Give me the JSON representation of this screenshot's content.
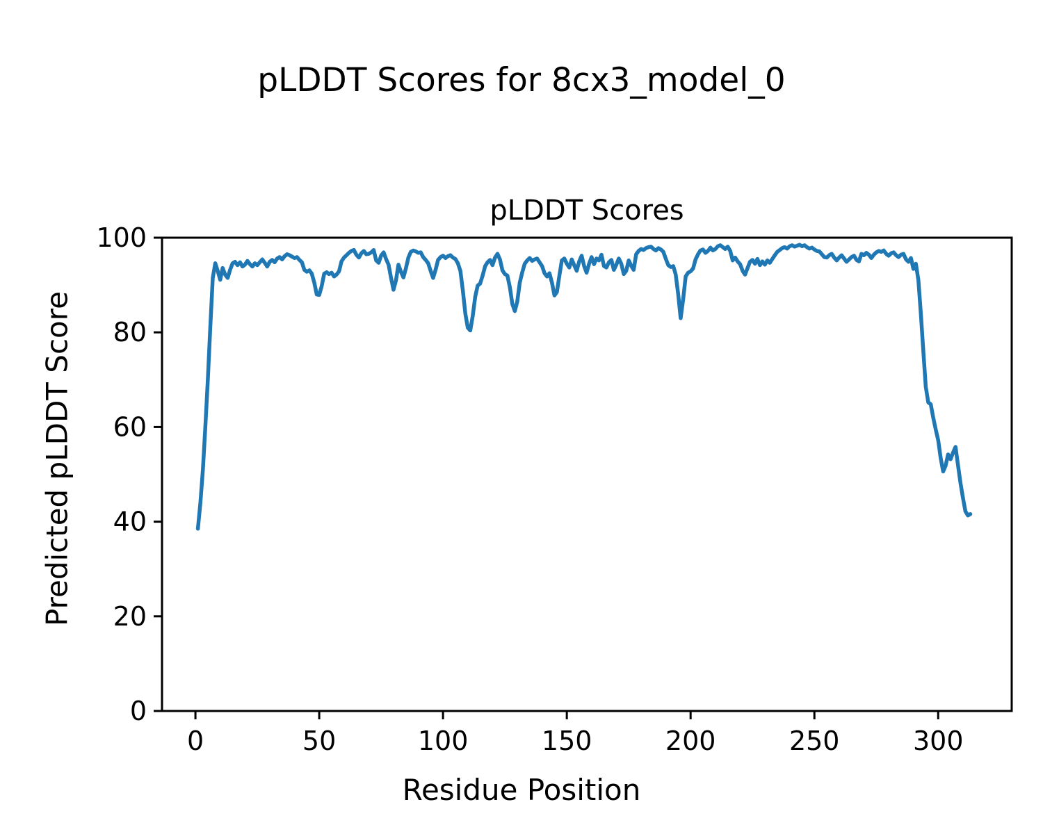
{
  "figure": {
    "suptitle": "pLDDT Scores for 8cx3_model_0",
    "background": "#ffffff"
  },
  "chart_data": {
    "type": "line",
    "title": "pLDDT Scores",
    "suptitle": "pLDDT Scores for 8cx3_model_0",
    "xlabel": "Residue Position",
    "ylabel": "Predicted pLDDT Score",
    "xlim": [
      -13.5,
      329.7
    ],
    "ylim": [
      0,
      100
    ],
    "xticks": [
      0,
      50,
      100,
      150,
      200,
      250,
      300
    ],
    "yticks": [
      0,
      20,
      40,
      60,
      80,
      100
    ],
    "grid": false,
    "legend": false,
    "line_color": "#1f77b4",
    "axes_color": "#000000",
    "series": [
      {
        "name": "pLDDT",
        "x_start": 1,
        "x_step": 1,
        "y": [
          38.5,
          44.0,
          51.0,
          60.0,
          70.0,
          81.0,
          91.5,
          94.6,
          93.0,
          91.1,
          93.6,
          92.2,
          91.5,
          93.2,
          94.6,
          94.9,
          94.2,
          94.8,
          93.9,
          94.3,
          95.1,
          94.4,
          93.9,
          94.6,
          94.2,
          94.8,
          95.4,
          94.7,
          93.9,
          94.9,
          95.3,
          94.8,
          95.6,
          95.9,
          95.4,
          96.1,
          96.5,
          96.3,
          96.0,
          95.7,
          95.9,
          95.3,
          94.8,
          93.2,
          92.8,
          93.1,
          92.4,
          90.5,
          88.0,
          87.9,
          89.8,
          92.4,
          92.7,
          92.3,
          92.6,
          91.8,
          92.2,
          92.9,
          95.0,
          95.8,
          96.3,
          96.8,
          97.2,
          97.4,
          96.4,
          95.8,
          96.7,
          97.2,
          96.5,
          96.6,
          96.9,
          97.4,
          95.2,
          94.7,
          96.2,
          96.9,
          95.5,
          94.3,
          91.5,
          89.0,
          91.0,
          94.3,
          92.8,
          91.6,
          93.5,
          95.8,
          97.0,
          97.3,
          97.1,
          96.8,
          96.9,
          95.9,
          95.3,
          94.6,
          93.0,
          91.5,
          93.2,
          95.3,
          95.9,
          96.2,
          95.7,
          96.1,
          96.3,
          95.8,
          95.5,
          94.6,
          93.0,
          88.9,
          84.0,
          81.0,
          80.4,
          83.5,
          87.5,
          89.9,
          90.3,
          92.0,
          94.0,
          94.8,
          95.3,
          94.2,
          95.8,
          96.6,
          95.4,
          93.1,
          92.3,
          92.0,
          89.5,
          86.0,
          84.5,
          86.5,
          90.5,
          92.7,
          94.5,
          95.2,
          95.7,
          95.1,
          95.4,
          95.6,
          94.8,
          94.0,
          92.5,
          91.8,
          92.5,
          90.5,
          87.8,
          88.5,
          92.0,
          95.2,
          95.6,
          94.5,
          93.7,
          95.4,
          94.2,
          93.0,
          95.0,
          96.2,
          94.0,
          92.6,
          94.5,
          95.9,
          94.4,
          95.6,
          95.2,
          96.4,
          94.0,
          93.7,
          94.8,
          95.3,
          93.2,
          94.3,
          95.6,
          94.5,
          92.3,
          93.0,
          95.2,
          94.1,
          93.2,
          96.5,
          97.2,
          97.6,
          97.4,
          97.8,
          98.0,
          98.1,
          97.6,
          97.3,
          97.8,
          97.5,
          97.0,
          95.5,
          94.2,
          93.8,
          94.0,
          92.2,
          88.0,
          83.0,
          87.0,
          91.8,
          92.6,
          92.9,
          93.5,
          95.4,
          96.5,
          97.3,
          97.5,
          96.8,
          97.2,
          97.9,
          97.3,
          97.6,
          98.2,
          98.4,
          98.0,
          97.6,
          98.1,
          97.2,
          95.2,
          95.8,
          95.0,
          94.4,
          93.0,
          92.2,
          93.6,
          94.9,
          95.3,
          94.5,
          95.5,
          94.2,
          95.0,
          94.3,
          95.2,
          94.7,
          95.5,
          96.3,
          97.0,
          97.4,
          97.8,
          98.0,
          97.7,
          98.2,
          98.4,
          98.1,
          98.3,
          98.5,
          98.2,
          98.4,
          98.0,
          97.7,
          97.9,
          97.5,
          97.2,
          97.1,
          96.5,
          95.9,
          95.8,
          96.3,
          96.6,
          95.8,
          95.2,
          95.8,
          96.3,
          95.6,
          94.9,
          95.4,
          95.9,
          96.2,
          95.3,
          95.0,
          96.6,
          96.3,
          96.8,
          96.4,
          95.7,
          96.4,
          96.9,
          97.2,
          97.0,
          97.3,
          96.6,
          96.2,
          96.7,
          96.9,
          96.3,
          95.9,
          96.4,
          96.6,
          95.4,
          94.9,
          95.7,
          93.4,
          94.5,
          91.0,
          84.0,
          76.0,
          68.5,
          65.2,
          64.8,
          62.0,
          59.5,
          57.2,
          53.5,
          50.6,
          51.8,
          54.2,
          53.2,
          54.6,
          55.8,
          52.0,
          48.2,
          45.0,
          42.2,
          41.3,
          41.6
        ]
      }
    ]
  }
}
